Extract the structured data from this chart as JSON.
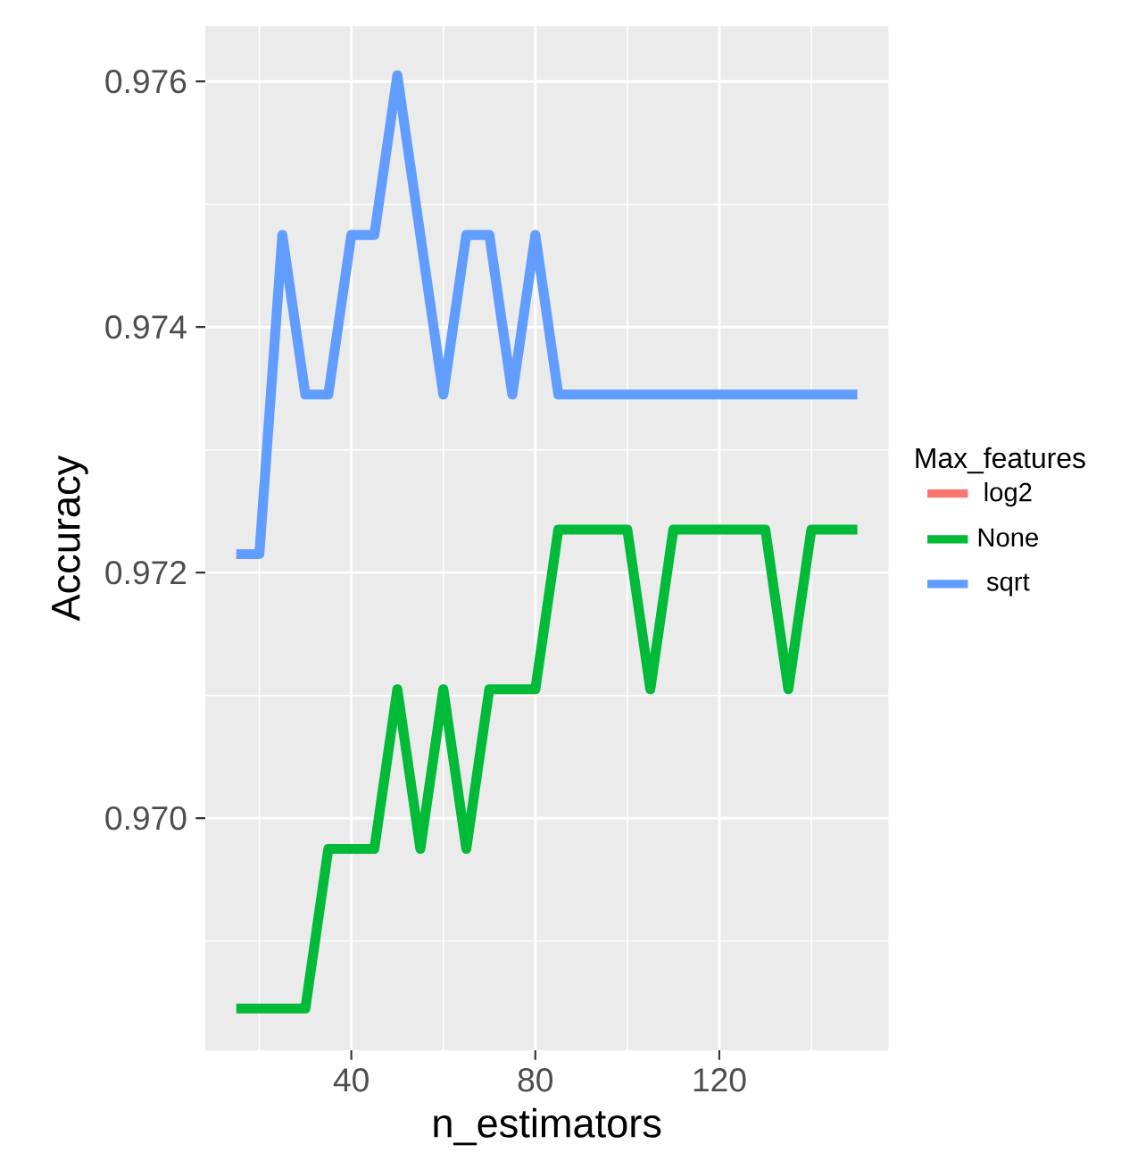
{
  "chart_data": {
    "type": "line",
    "xlabel": "n_estimators",
    "ylabel": "Accuracy",
    "legend_title": "Max_features",
    "legend": "right",
    "grid": true,
    "x": [
      15,
      20,
      25,
      30,
      35,
      40,
      45,
      50,
      55,
      60,
      65,
      70,
      75,
      80,
      85,
      90,
      95,
      100,
      105,
      110,
      115,
      120,
      125,
      130,
      135,
      140,
      145,
      150
    ],
    "xlim": [
      8.25,
      156.75
    ],
    "xticks": [
      40,
      80,
      120
    ],
    "ylim": [
      0.96811,
      0.97645
    ],
    "yticks": [
      {
        "value": 0.97,
        "label": "0.970"
      },
      {
        "value": 0.972,
        "label": "0.972"
      },
      {
        "value": 0.974,
        "label": "0.974"
      },
      {
        "value": 0.976,
        "label": "0.976"
      }
    ],
    "series": [
      {
        "name": "log2",
        "color": "#f8766d",
        "values": [
          null,
          null,
          null,
          null,
          null,
          null,
          null,
          null,
          null,
          null,
          null,
          null,
          null,
          null,
          null,
          null,
          null,
          null,
          null,
          null,
          null,
          null,
          null,
          null,
          null,
          null,
          null,
          null
        ]
      },
      {
        "name": "None",
        "color": "#00ba38",
        "values": [
          0.96845,
          0.96845,
          0.96845,
          0.96845,
          0.96975,
          0.96975,
          0.96975,
          0.97105,
          0.96975,
          0.97105,
          0.96975,
          0.97105,
          0.97105,
          0.97105,
          0.97235,
          0.97235,
          0.97235,
          0.97235,
          0.97105,
          0.97235,
          0.97235,
          0.97235,
          0.97235,
          0.97235,
          0.97105,
          0.97235,
          0.97235,
          0.97235
        ]
      },
      {
        "name": "sqrt",
        "color": "#619cff",
        "values": [
          0.97215,
          0.97215,
          0.97475,
          0.97345,
          0.97345,
          0.97475,
          0.97475,
          0.97605,
          0.97475,
          0.97345,
          0.97475,
          0.97475,
          0.97345,
          0.97475,
          0.97345,
          0.97345,
          0.97345,
          0.97345,
          0.97345,
          0.97345,
          0.97345,
          0.97345,
          0.97345,
          0.97345,
          0.97345,
          0.97345,
          0.97345,
          0.97345
        ]
      }
    ]
  }
}
